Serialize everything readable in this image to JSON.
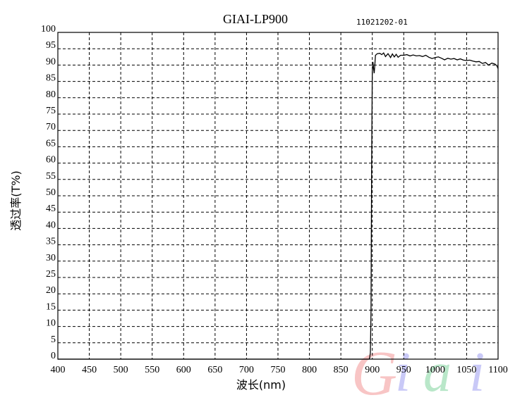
{
  "chart_data": {
    "type": "line",
    "title": "GIAI-LP900",
    "annotation": "11021202-01",
    "xlabel": "波长(nm)",
    "ylabel": "透过率(T%)",
    "xlim": [
      400,
      1100
    ],
    "ylim": [
      0,
      100
    ],
    "xticks": [
      400,
      450,
      500,
      550,
      600,
      650,
      700,
      750,
      800,
      850,
      900,
      950,
      1000,
      1050,
      1100
    ],
    "yticks": [
      0,
      5,
      10,
      15,
      20,
      25,
      30,
      35,
      40,
      45,
      50,
      55,
      60,
      65,
      70,
      75,
      80,
      85,
      90,
      95,
      100
    ],
    "grid": true,
    "grid_style": "dashed",
    "line_color": "#000000",
    "watermark": "Giai",
    "series": [
      {
        "x": [
          400,
          850,
          895,
          896,
          897,
          898,
          899,
          900,
          901,
          902,
          903,
          904,
          905,
          908,
          912,
          915,
          918,
          921,
          925,
          929,
          932,
          935,
          938,
          941,
          945,
          950,
          955,
          960,
          965,
          970,
          975,
          980,
          985,
          990,
          995,
          1000,
          1005,
          1010,
          1015,
          1020,
          1025,
          1030,
          1035,
          1040,
          1045,
          1050,
          1055,
          1060,
          1065,
          1070,
          1075,
          1080,
          1085,
          1090,
          1095,
          1098,
          1100
        ],
        "y": [
          0,
          0,
          0,
          0.5,
          2,
          15,
          60,
          88,
          91,
          89,
          87.5,
          90,
          93,
          93.5,
          93.6,
          93.2,
          93.7,
          92.6,
          93.5,
          92.3,
          93.4,
          92.5,
          93.3,
          92.4,
          93.0,
          93.0,
          93.2,
          92.8,
          93.1,
          92.8,
          92.9,
          92.6,
          93.0,
          92.4,
          92.0,
          92.3,
          92.5,
          92.1,
          91.6,
          92.1,
          91.8,
          92.0,
          91.6,
          91.9,
          91.5,
          91.4,
          91.5,
          91.2,
          91.0,
          91.1,
          90.5,
          90.8,
          90.0,
          90.6,
          90.3,
          89.8,
          88.9
        ]
      }
    ]
  }
}
